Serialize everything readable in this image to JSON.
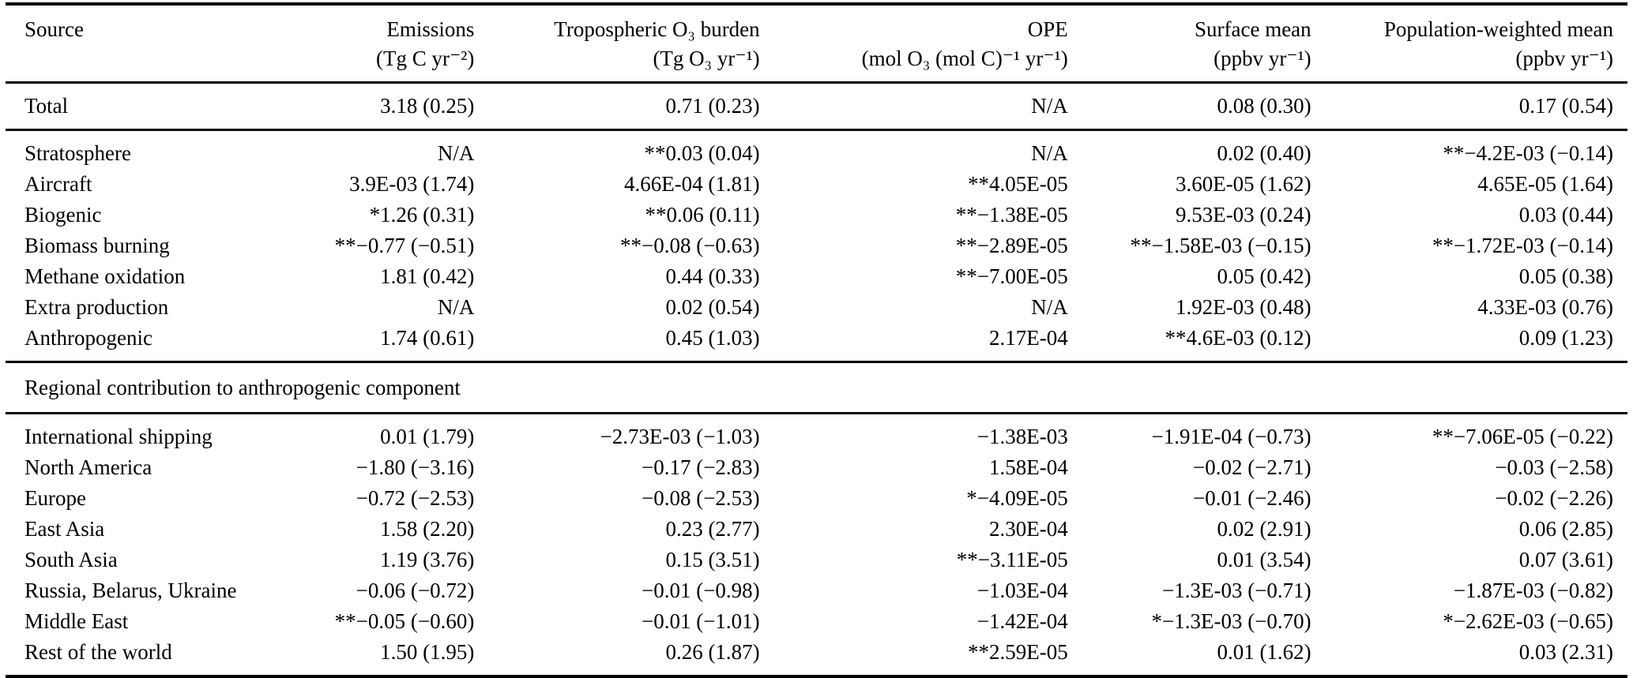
{
  "table": {
    "columns": [
      {
        "label": "Source",
        "unit": ""
      },
      {
        "label": "Emissions",
        "unit": "(Tg C yr⁻²)"
      },
      {
        "label": "Tropospheric O₃ burden",
        "unit": "(Tg O₃ yr⁻¹)"
      },
      {
        "label": "OPE",
        "unit": "(mol O₃ (mol C)⁻¹ yr⁻¹)"
      },
      {
        "label": "Surface mean",
        "unit": "(ppbv yr⁻¹)"
      },
      {
        "label": "Population-weighted mean",
        "unit": "(ppbv yr⁻¹)"
      }
    ],
    "groups": [
      {
        "name": "total",
        "rows": [
          [
            "Total",
            "3.18 (0.25)",
            "0.71 (0.23)",
            "N/A",
            "0.08 (0.30)",
            "0.17 (0.54)"
          ]
        ]
      },
      {
        "name": "components",
        "rows": [
          [
            "Stratosphere",
            "N/A",
            "**0.03 (0.04)",
            "N/A",
            "0.02 (0.40)",
            "**−4.2E-03 (−0.14)"
          ],
          [
            "Aircraft",
            "3.9E-03 (1.74)",
            "4.66E-04 (1.81)",
            "**4.05E-05",
            "3.60E-05 (1.62)",
            "4.65E-05 (1.64)"
          ],
          [
            "Biogenic",
            "*1.26 (0.31)",
            "**0.06 (0.11)",
            "**−1.38E-05",
            "9.53E-03 (0.24)",
            "0.03 (0.44)"
          ],
          [
            "Biomass burning",
            "**−0.77 (−0.51)",
            "**−0.08 (−0.63)",
            "**−2.89E-05",
            "**−1.58E-03 (−0.15)",
            "**−1.72E-03 (−0.14)"
          ],
          [
            "Methane oxidation",
            "1.81 (0.42)",
            "0.44 (0.33)",
            "**−7.00E-05",
            "0.05 (0.42)",
            "0.05 (0.38)"
          ],
          [
            "Extra production",
            "N/A",
            "0.02 (0.54)",
            "N/A",
            "1.92E-03 (0.48)",
            "4.33E-03 (0.76)"
          ],
          [
            "Anthropogenic",
            "1.74 (0.61)",
            "0.45 (1.03)",
            "2.17E-04",
            "**4.6E-03 (0.12)",
            "0.09 (1.23)"
          ]
        ]
      },
      {
        "name": "regional-section",
        "header": "Regional contribution to anthropogenic component"
      },
      {
        "name": "regional",
        "rows": [
          [
            "International shipping",
            "0.01 (1.79)",
            "−2.73E-03 (−1.03)",
            "−1.38E-03",
            "−1.91E-04 (−0.73)",
            "**−7.06E-05 (−0.22)"
          ],
          [
            "North America",
            "−1.80 (−3.16)",
            "−0.17 (−2.83)",
            "1.58E-04",
            "−0.02 (−2.71)",
            "−0.03 (−2.58)"
          ],
          [
            "Europe",
            "−0.72 (−2.53)",
            "−0.08 (−2.53)",
            "*−4.09E-05",
            "−0.01 (−2.46)",
            "−0.02 (−2.26)"
          ],
          [
            "East Asia",
            "1.58 (2.20)",
            "0.23 (2.77)",
            "2.30E-04",
            "0.02 (2.91)",
            "0.06 (2.85)"
          ],
          [
            "South Asia",
            "1.19 (3.76)",
            "0.15 (3.51)",
            "**−3.11E-05",
            "0.01 (3.54)",
            "0.07 (3.61)"
          ],
          [
            "Russia, Belarus, Ukraine",
            "−0.06 (−0.72)",
            "−0.01 (−0.98)",
            "−1.03E-04",
            "−1.3E-03 (−0.71)",
            "−1.87E-03 (−0.82)"
          ],
          [
            "Middle East",
            "**−0.05 (−0.60)",
            "−0.01 (−1.01)",
            "−1.42E-04",
            "*−1.3E-03 (−0.70)",
            "*−2.62E-03 (−0.65)"
          ],
          [
            "Rest of the world",
            "1.50 (1.95)",
            "0.26 (1.87)",
            "**2.59E-05",
            "0.01 (1.62)",
            "0.03 (2.31)"
          ]
        ]
      }
    ]
  }
}
